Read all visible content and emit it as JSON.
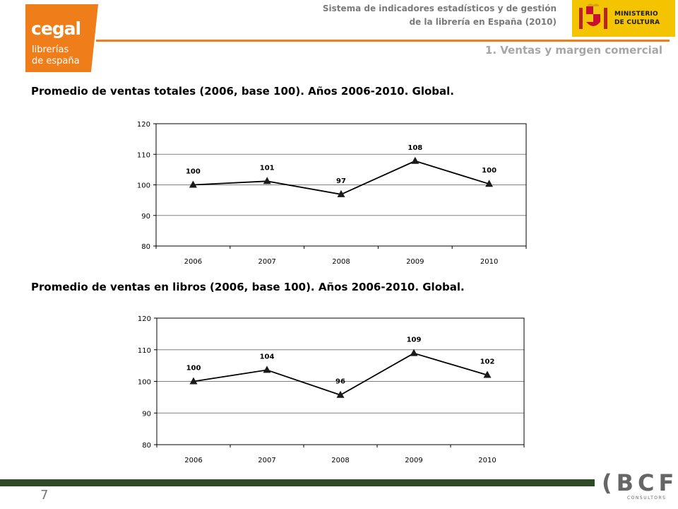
{
  "header": {
    "logo": {
      "name": "cegal",
      "line1": "librerías",
      "line2": "de españa"
    },
    "system_title_line1": "Sistema de indicadores estadísticos y de gestión",
    "system_title_line2": "de la librería en España (2010)",
    "section": "1. Ventas y margen comercial",
    "ministry": {
      "line1": "MINISTERIO",
      "line2": "DE CULTURA"
    }
  },
  "colors": {
    "orange": "#ef7d1a",
    "green_band": "#2f4a26",
    "ministry_yellow": "#f5c400",
    "header_gray": "#7a7a7a",
    "section_gray": "#a7a7a7",
    "series_line": "#000000",
    "gridline": "#808080"
  },
  "chart_data": [
    {
      "type": "line",
      "title": "Promedio de ventas totales (2006, base 100). Años 2006-2010. Global.",
      "categories": [
        "2006",
        "2007",
        "2008",
        "2009",
        "2010"
      ],
      "series": [
        {
          "values": [
            100,
            101.2,
            96.9,
            107.8,
            100.3
          ]
        }
      ],
      "data_labels": [
        "100",
        "101",
        "97",
        "108",
        "100"
      ],
      "ylim": [
        80,
        120
      ],
      "yticks": [
        "80",
        "90",
        "100",
        "110",
        "120"
      ],
      "marker": "triangle",
      "grid": true,
      "legend": "none"
    },
    {
      "type": "line",
      "title": "Promedio de ventas en libros (2006, base 100). Años 2006-2010. Global.",
      "categories": [
        "2006",
        "2007",
        "2008",
        "2009",
        "2010"
      ],
      "series": [
        {
          "values": [
            100,
            103.6,
            95.7,
            108.9,
            102.0
          ]
        }
      ],
      "data_labels": [
        "100",
        "104",
        "96",
        "109",
        "102"
      ],
      "ylim": [
        80,
        120
      ],
      "yticks": [
        "80",
        "90",
        "100",
        "110",
        "120"
      ],
      "marker": "triangle",
      "grid": true,
      "legend": "none"
    }
  ],
  "footer": {
    "page_number": "7",
    "brand": {
      "letters": "(BCF)",
      "sub": "CONSULTORS"
    }
  }
}
